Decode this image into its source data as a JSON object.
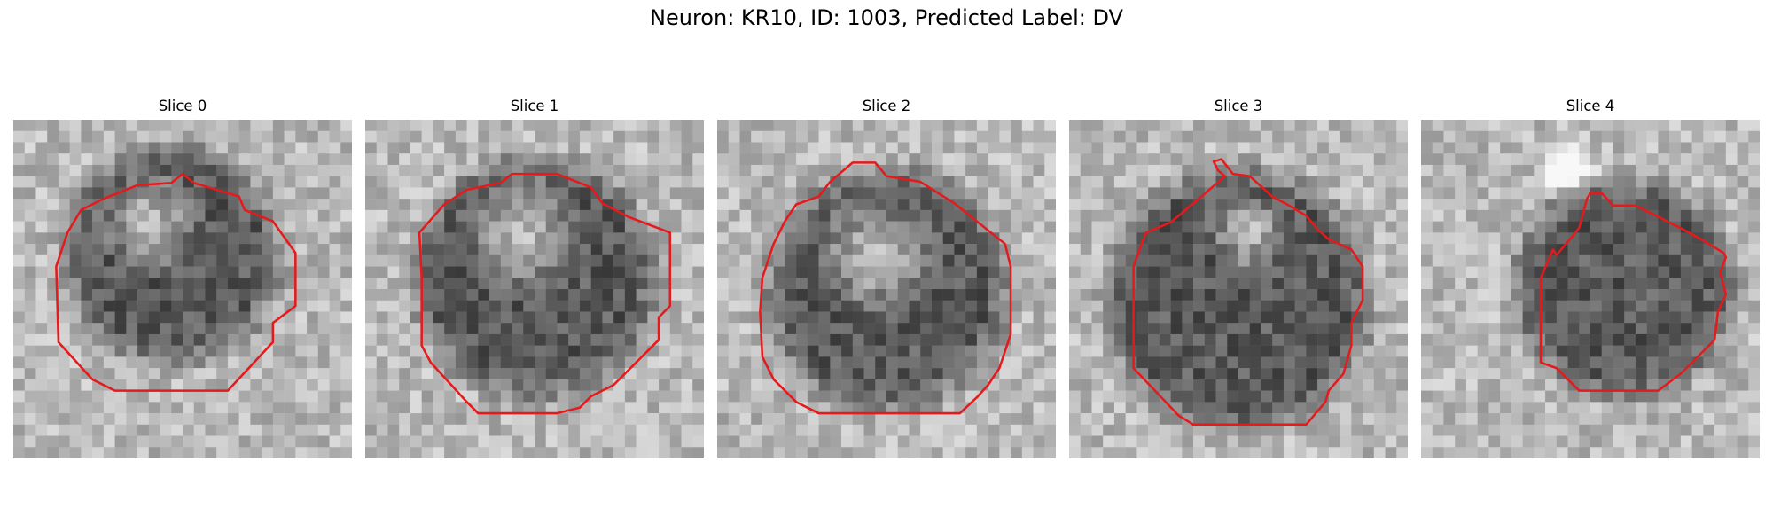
{
  "figure": {
    "title": "Neuron: KR10, ID: 1003, Predicted Label: DV",
    "grid": 30,
    "contour_color": "#e41a1c",
    "panels": [
      {
        "title": "Slice 0",
        "blob": {
          "cx": 14,
          "cy": 12,
          "r": 9,
          "bright_cx": 12,
          "bright_cy": 9,
          "bright_r": 5,
          "seed": 11
        },
        "contour": [
          [
            15,
            4.8
          ],
          [
            16,
            5.6
          ],
          [
            20,
            6.8
          ],
          [
            20.5,
            8
          ],
          [
            23,
            9
          ],
          [
            25,
            11.8
          ],
          [
            25,
            16.5
          ],
          [
            23,
            18
          ],
          [
            23,
            19.7
          ],
          [
            19,
            24
          ],
          [
            9,
            24
          ],
          [
            8,
            23.5
          ],
          [
            7,
            23
          ],
          [
            4,
            19.7
          ],
          [
            3.8,
            13
          ],
          [
            4.8,
            10
          ],
          [
            6,
            8
          ],
          [
            8,
            7
          ],
          [
            11,
            5.8
          ],
          [
            14,
            5.6
          ]
        ]
      },
      {
        "title": "Slice 1",
        "blob": {
          "cx": 15,
          "cy": 14,
          "r": 10,
          "bright_cx": 14,
          "bright_cy": 10,
          "bright_r": 6,
          "seed": 23
        },
        "contour": [
          [
            13,
            4.8
          ],
          [
            17,
            4.8
          ],
          [
            20,
            6
          ],
          [
            21,
            7.4
          ],
          [
            23.3,
            8.6
          ],
          [
            27,
            10
          ],
          [
            27,
            16.5
          ],
          [
            26,
            17.5
          ],
          [
            26,
            19.5
          ],
          [
            24,
            21.5
          ],
          [
            22,
            23.5
          ],
          [
            20,
            24.5
          ],
          [
            19,
            25.5
          ],
          [
            17,
            26
          ],
          [
            10,
            26
          ],
          [
            9,
            25
          ],
          [
            5.8,
            21.5
          ],
          [
            5,
            20
          ],
          [
            5,
            14
          ],
          [
            4.8,
            10
          ],
          [
            7,
            7.5
          ],
          [
            9,
            6.2
          ],
          [
            12,
            5.6
          ]
        ]
      },
      {
        "title": "Slice 2",
        "blob": {
          "cx": 15,
          "cy": 15,
          "r": 10,
          "bright_cx": 14,
          "bright_cy": 12,
          "bright_r": 6,
          "seed": 37
        },
        "contour": [
          [
            12,
            3.8
          ],
          [
            14,
            3.8
          ],
          [
            15,
            5
          ],
          [
            18,
            5.5
          ],
          [
            21,
            7.4
          ],
          [
            23,
            9
          ],
          [
            25.5,
            11
          ],
          [
            26,
            13
          ],
          [
            26,
            19
          ],
          [
            25,
            22
          ],
          [
            24,
            23.5
          ],
          [
            23,
            24.6
          ],
          [
            21.5,
            26
          ],
          [
            9,
            26
          ],
          [
            7,
            25
          ],
          [
            5,
            23
          ],
          [
            4,
            21
          ],
          [
            3.8,
            17
          ],
          [
            4,
            14
          ],
          [
            5,
            11
          ],
          [
            6,
            9
          ],
          [
            7,
            7.5
          ],
          [
            9,
            6.8
          ],
          [
            10,
            5.5
          ]
        ]
      },
      {
        "title": "Slice 3",
        "blob": {
          "cx": 15,
          "cy": 16,
          "r": 11,
          "bright_cx": 16,
          "bright_cy": 10,
          "bright_r": 4,
          "seed": 53
        },
        "contour": [
          [
            12.8,
            3.7
          ],
          [
            13.5,
            3.5
          ],
          [
            14.5,
            4.8
          ],
          [
            16,
            5
          ],
          [
            18,
            6.8
          ],
          [
            19.3,
            7.5
          ],
          [
            21,
            8.5
          ],
          [
            22,
            9.7
          ],
          [
            23,
            10.6
          ],
          [
            25,
            11.5
          ],
          [
            26,
            13
          ],
          [
            26,
            16
          ],
          [
            25,
            18
          ],
          [
            25,
            20
          ],
          [
            24.3,
            22.5
          ],
          [
            23,
            24
          ],
          [
            22.7,
            25
          ],
          [
            21,
            27
          ],
          [
            11,
            27
          ],
          [
            9.7,
            26.2
          ],
          [
            5.7,
            22
          ],
          [
            5.7,
            13
          ],
          [
            6.8,
            10
          ],
          [
            9,
            9.1
          ],
          [
            11.5,
            7
          ],
          [
            13.8,
            5
          ],
          [
            13.2,
            4.5
          ]
        ]
      },
      {
        "title": "Slice 4",
        "blob": {
          "cx": 18,
          "cy": 15,
          "r": 9,
          "bright_cx": 13,
          "bright_cy": 4,
          "bright_r": 3,
          "seed": 71
        },
        "contour": [
          [
            15,
            6.5
          ],
          [
            16,
            6.5
          ],
          [
            17,
            7.6
          ],
          [
            19,
            7.6
          ],
          [
            21,
            8.6
          ],
          [
            23,
            9.6
          ],
          [
            25,
            10.7
          ],
          [
            26.8,
            11.8
          ],
          [
            27,
            12.2
          ],
          [
            26.5,
            13.5
          ],
          [
            27,
            15.5
          ],
          [
            26.3,
            17
          ],
          [
            26,
            19.5
          ],
          [
            23,
            22.5
          ],
          [
            21,
            24
          ],
          [
            14,
            24
          ],
          [
            12,
            22
          ],
          [
            10.6,
            21.5
          ],
          [
            10.6,
            14
          ],
          [
            11.7,
            11.5
          ],
          [
            12,
            12
          ],
          [
            14,
            9.6
          ],
          [
            14.7,
            7
          ]
        ]
      }
    ]
  }
}
